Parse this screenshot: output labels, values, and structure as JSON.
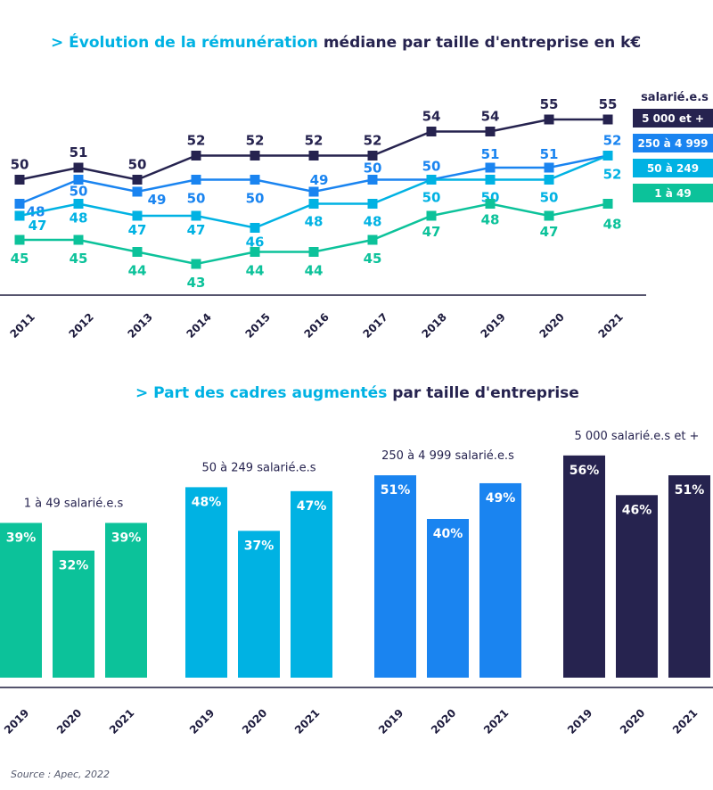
{
  "line_chart": {
    "title_accent": "> Évolution de la rémunération",
    "title_rest": " médiane  par taille d'entreprise en k€"
  },
  "bar_chart": {
    "title_accent": "> Part des cadres augmentés",
    "title_rest": " par taille d'entreprise"
  },
  "source": "Source : Apec, 2022",
  "colors": {
    "dark_navy": "#26234f",
    "blue": "#1a84f0",
    "light_blue": "#00b2e3",
    "teal": "#0cc29a",
    "axis": "#1d1b3d"
  },
  "chart_data": [
    {
      "type": "line",
      "title": "Évolution de la rémunération médiane  par taille d'entreprise en k€",
      "x": [
        "2011",
        "2012",
        "2013",
        "2014",
        "2015",
        "2016",
        "2017",
        "2018",
        "2019",
        "2020",
        "2021"
      ],
      "legend_title": "salarié.e.s",
      "legend_position": "right",
      "series": [
        {
          "name": "5 000 et +",
          "color": "#26234f",
          "values": [
            50,
            51,
            50,
            52,
            52,
            52,
            52,
            54,
            54,
            55,
            55
          ]
        },
        {
          "name": "250 à 4 999",
          "color": "#1a84f0",
          "values": [
            48,
            50,
            49,
            50,
            50,
            49,
            50,
            50,
            51,
            51,
            52
          ]
        },
        {
          "name": "50 à 249",
          "color": "#00b2e3",
          "values": [
            47,
            48,
            47,
            47,
            46,
            48,
            48,
            50,
            50,
            50,
            52
          ]
        },
        {
          "name": "1 à 49",
          "color": "#0cc29a",
          "values": [
            45,
            45,
            44,
            43,
            44,
            44,
            45,
            47,
            48,
            47,
            48
          ]
        }
      ]
    },
    {
      "type": "bar",
      "title": "Part des cadres augmentés par taille d'entreprise",
      "categories": [
        "2019",
        "2020",
        "2021"
      ],
      "unit": "%",
      "groups": [
        {
          "name": "1 à 49 salarié.e.s",
          "color": "#0cc29a",
          "values": [
            39,
            32,
            39
          ]
        },
        {
          "name": "50 à 249 salarié.e.s",
          "color": "#00b2e3",
          "values": [
            48,
            37,
            47
          ]
        },
        {
          "name": "250 à 4 999 salarié.e.s",
          "color": "#1a84f0",
          "values": [
            51,
            40,
            49
          ]
        },
        {
          "name": "5 000 salarié.e.s et +",
          "color": "#26234f",
          "values": [
            56,
            46,
            51
          ]
        }
      ]
    }
  ]
}
